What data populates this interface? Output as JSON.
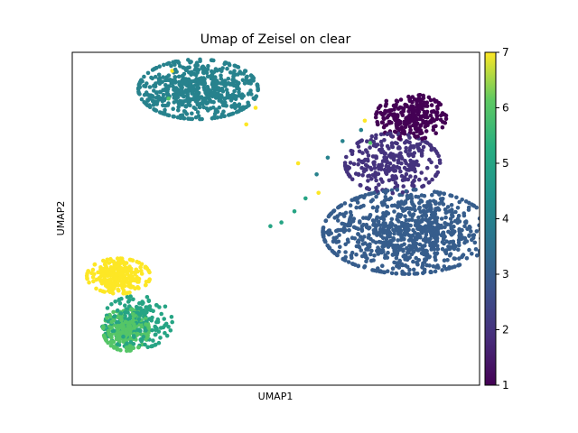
{
  "chart_data": {
    "type": "scatter",
    "title": "Umap of Zeisel on clear",
    "xlabel": "UMAP1",
    "ylabel": "UMAP2",
    "x_ticks_shown": false,
    "y_ticks_shown": false,
    "grid": false,
    "colorbar": {
      "colormap": "viridis",
      "range": [
        1,
        7
      ],
      "ticks": [
        {
          "value": 1,
          "label": "1"
        },
        {
          "value": 2,
          "label": "2"
        },
        {
          "value": 3,
          "label": "3"
        },
        {
          "value": 4,
          "label": "4"
        },
        {
          "value": 5,
          "label": "5"
        },
        {
          "value": 6,
          "label": "6"
        },
        {
          "value": 7,
          "label": "7"
        }
      ]
    },
    "xlim": [
      -6,
      16
    ],
    "ylim": [
      -5,
      13
    ],
    "clusters": [
      {
        "label": 1,
        "center": [
          12.3,
          9.5
        ],
        "spread": [
          1.0,
          0.65
        ],
        "count": 260
      },
      {
        "label": 2,
        "center": [
          11.3,
          7.0
        ],
        "spread": [
          1.35,
          0.85
        ],
        "count": 300
      },
      {
        "label": 3,
        "center": [
          12.1,
          3.3
        ],
        "spread": [
          2.4,
          1.2
        ],
        "count": 900
      },
      {
        "label": 4,
        "center": [
          0.8,
          11.0
        ],
        "spread": [
          1.7,
          0.85
        ],
        "count": 620
      },
      {
        "label": 5,
        "center": [
          -2.5,
          -1.6
        ],
        "spread": [
          1.0,
          0.75
        ],
        "count": 200
      },
      {
        "label": 6,
        "center": [
          -3.1,
          -2.0
        ],
        "spread": [
          0.65,
          0.6
        ],
        "count": 260
      },
      {
        "label": 7,
        "center": [
          -3.5,
          0.9
        ],
        "spread": [
          0.9,
          0.5
        ],
        "count": 260
      }
    ],
    "stray_points": [
      {
        "x": 4.7,
        "y": 3.6,
        "label": 5
      },
      {
        "x": 5.3,
        "y": 3.8,
        "label": 5
      },
      {
        "x": 6.0,
        "y": 4.4,
        "label": 5
      },
      {
        "x": 6.6,
        "y": 5.1,
        "label": 5
      },
      {
        "x": 7.2,
        "y": 6.4,
        "label": 4
      },
      {
        "x": 7.8,
        "y": 7.3,
        "label": 4
      },
      {
        "x": 8.6,
        "y": 8.2,
        "label": 4
      },
      {
        "x": 9.6,
        "y": 8.8,
        "label": 4
      },
      {
        "x": 6.2,
        "y": 7.0,
        "label": 7
      },
      {
        "x": 7.3,
        "y": 5.4,
        "label": 7
      },
      {
        "x": 3.9,
        "y": 10.0,
        "label": 7
      },
      {
        "x": -0.6,
        "y": 12.0,
        "label": 7
      },
      {
        "x": -0.8,
        "y": 10.5,
        "label": 6
      },
      {
        "x": 3.4,
        "y": 9.1,
        "label": 7
      },
      {
        "x": 9.8,
        "y": 9.3,
        "label": 7
      },
      {
        "x": 10.1,
        "y": 8.1,
        "label": 6
      }
    ]
  }
}
